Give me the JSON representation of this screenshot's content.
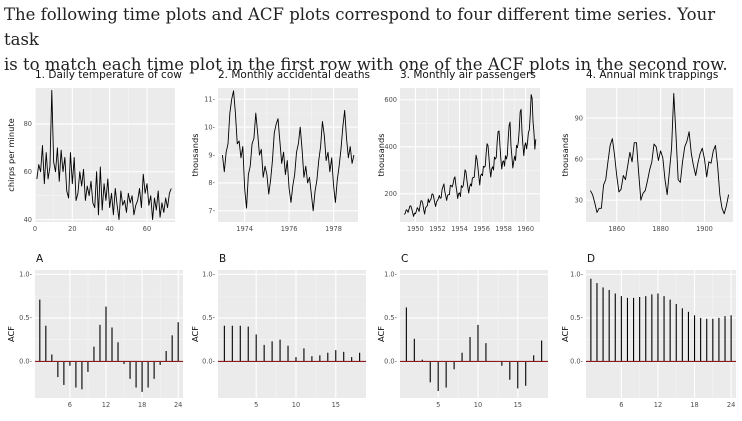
{
  "intro": {
    "line1": "The following time plots and ACF plots correspond to four different time series. Your task",
    "line2": "is to match each time plot in the first row with one of the ACF plots in the second row."
  },
  "colors": {
    "panel_bg": "#ebebeb",
    "grid_major": "#ffffff",
    "grid_minor": "#f5f5f5",
    "series": "#000000",
    "acf_bar": "#000000",
    "zero_line": "#8b1a1a"
  },
  "chart_data": [
    {
      "type": "line",
      "title": "1. Daily temperature of cow",
      "xlabel": "",
      "ylabel": "chirps per minute",
      "xlim": [
        0,
        75
      ],
      "ylim": [
        39,
        95
      ],
      "xticks": [
        0,
        20,
        40,
        60
      ],
      "xtick_labels": [
        "0",
        "20",
        "40",
        "60"
      ],
      "yticks": [
        40,
        60,
        80
      ],
      "ytick_labels": [
        "40",
        "60",
        "80"
      ],
      "x_start": 1,
      "values": [
        57,
        63,
        60,
        71,
        55,
        68,
        57,
        62,
        94,
        64,
        60,
        70,
        56,
        69,
        60,
        66,
        52,
        49,
        68,
        55,
        66,
        48,
        51,
        60,
        54,
        61,
        48,
        54,
        50,
        56,
        47,
        45,
        60,
        42,
        62,
        44,
        55,
        48,
        57,
        45,
        51,
        42,
        53,
        46,
        40,
        52,
        46,
        48,
        43,
        51,
        47,
        50,
        42,
        46,
        48,
        53,
        45,
        59,
        51,
        55,
        46,
        50,
        40,
        49,
        44,
        52,
        41,
        47,
        43,
        49,
        45,
        51,
        53
      ]
    },
    {
      "type": "line",
      "title": "2. Monthly accidental deaths",
      "xlabel": "",
      "ylabel": "thousands",
      "xlim": [
        1972.8,
        1979.1
      ],
      "ylim": [
        6.6,
        11.4
      ],
      "xticks": [
        1974,
        1976,
        1978
      ],
      "xtick_labels": [
        "1974",
        "1976",
        "1978"
      ],
      "yticks": [
        7,
        8,
        9,
        10,
        11
      ],
      "ytick_labels": [
        "7-",
        "8-",
        "9-",
        "10-",
        "11-"
      ],
      "x_start": 1973.0,
      "x_step": 0.0833333,
      "values": [
        9.0,
        8.4,
        9.1,
        9.4,
        10.5,
        11.0,
        11.3,
        10.5,
        9.4,
        9.5,
        8.9,
        9.3,
        7.8,
        7.1,
        8.3,
        8.6,
        9.4,
        9.6,
        10.5,
        9.8,
        9.0,
        9.2,
        8.2,
        8.6,
        8.3,
        7.6,
        8.1,
        8.8,
        9.8,
        10.1,
        10.3,
        9.5,
        8.7,
        9.1,
        8.3,
        8.8,
        7.8,
        7.3,
        7.9,
        8.3,
        9.1,
        9.4,
        10.0,
        9.2,
        8.2,
        8.6,
        8.0,
        8.2,
        7.6,
        7.0,
        7.7,
        8.1,
        8.8,
        9.3,
        10.2,
        9.7,
        8.8,
        9.1,
        8.4,
        8.9,
        7.9,
        7.3,
        8.1,
        8.6,
        9.2,
        10.0,
        10.6,
        9.6,
        8.9,
        9.3,
        8.7,
        9.0
      ]
    },
    {
      "type": "line",
      "title": "3. Monthly air passengers",
      "xlabel": "",
      "ylabel": "thousands",
      "xlim": [
        1948.6,
        1961.3
      ],
      "ylim": [
        80,
        650
      ],
      "xticks": [
        1950,
        1952,
        1954,
        1956,
        1958,
        1960
      ],
      "xtick_labels": [
        "1950",
        "1952",
        "1954",
        "1956",
        "1958",
        "1960"
      ],
      "yticks": [
        200,
        400,
        600
      ],
      "ytick_labels": [
        "200",
        "400",
        "600"
      ],
      "x_start": 1949.0,
      "x_step": 0.0833333,
      "values": [
        112,
        118,
        132,
        129,
        121,
        135,
        148,
        148,
        136,
        119,
        104,
        118,
        115,
        126,
        141,
        135,
        125,
        149,
        170,
        170,
        158,
        133,
        114,
        140,
        145,
        150,
        178,
        163,
        172,
        178,
        199,
        199,
        184,
        162,
        146,
        166,
        171,
        180,
        193,
        181,
        183,
        218,
        230,
        242,
        209,
        191,
        172,
        194,
        196,
        196,
        236,
        235,
        229,
        243,
        264,
        272,
        237,
        211,
        180,
        201,
        204,
        188,
        235,
        227,
        234,
        264,
        302,
        293,
        259,
        229,
        203,
        229,
        242,
        233,
        267,
        269,
        270,
        315,
        364,
        347,
        312,
        274,
        237,
        278,
        284,
        277,
        317,
        313,
        318,
        374,
        413,
        405,
        355,
        306,
        271,
        306,
        315,
        301,
        356,
        348,
        355,
        422,
        465,
        467,
        404,
        347,
        305,
        336,
        340,
        318,
        362,
        348,
        363,
        435,
        491,
        505,
        404,
        359,
        310,
        337,
        360,
        342,
        406,
        396,
        420,
        472,
        548,
        559,
        463,
        407,
        362,
        405,
        417,
        391,
        419,
        461,
        472,
        535,
        622,
        606,
        508,
        461,
        390,
        432
      ]
    },
    {
      "type": "line",
      "title": "4. Annual mink trappings",
      "xlabel": "",
      "ylabel": "thousands",
      "xlim": [
        1846,
        1913
      ],
      "ylim": [
        14,
        112
      ],
      "xticks": [
        1860,
        1880,
        1900
      ],
      "xtick_labels": [
        "1860",
        "1880",
        "1900"
      ],
      "yticks": [
        30,
        60,
        90
      ],
      "ytick_labels": [
        "30",
        "60",
        "90"
      ],
      "x_start": 1848,
      "x_step": 1,
      "values": [
        37,
        34,
        28,
        21,
        24,
        24,
        41,
        45,
        58,
        70,
        75,
        63,
        48,
        36,
        38,
        48,
        45,
        55,
        65,
        58,
        72,
        72,
        50,
        30,
        35,
        37,
        44,
        52,
        58,
        71,
        69,
        59,
        66,
        61,
        45,
        34,
        51,
        68,
        108,
        78,
        45,
        43,
        58,
        69,
        73,
        80,
        64,
        55,
        48,
        57,
        64,
        68,
        60,
        47,
        58,
        57,
        66,
        70,
        55,
        34,
        24,
        20,
        26,
        34
      ]
    },
    {
      "type": "bar",
      "subtype": "acf",
      "label": "A",
      "xlabel": "",
      "ylabel": "ACF",
      "xlim": [
        0.2,
        24.8
      ],
      "ylim": [
        -0.42,
        1.05
      ],
      "xticks": [
        6,
        12,
        18,
        24
      ],
      "xtick_labels": [
        "6",
        "12",
        "18",
        "24"
      ],
      "yticks": [
        0.0,
        0.5,
        1.0
      ],
      "ytick_labels": [
        "0.0-",
        "0.5-",
        "1.0-"
      ],
      "lags": [
        1,
        2,
        3,
        4,
        5,
        6,
        7,
        8,
        9,
        10,
        11,
        12,
        13,
        14,
        15,
        16,
        17,
        18,
        19,
        20,
        21,
        22,
        23,
        24
      ],
      "values": [
        0.71,
        0.41,
        0.08,
        -0.18,
        -0.27,
        -0.05,
        -0.3,
        -0.32,
        -0.12,
        0.17,
        0.42,
        0.63,
        0.39,
        0.22,
        -0.03,
        -0.2,
        -0.3,
        -0.35,
        -0.3,
        -0.2,
        -0.04,
        0.12,
        0.3,
        0.45
      ]
    },
    {
      "type": "bar",
      "subtype": "acf",
      "label": "B",
      "xlabel": "",
      "ylabel": "ACF",
      "xlim": [
        0.2,
        18.8
      ],
      "ylim": [
        -0.42,
        1.05
      ],
      "xticks": [
        5,
        10,
        15
      ],
      "xtick_labels": [
        "5",
        "10",
        "15"
      ],
      "yticks": [
        0.0,
        0.5,
        1.0
      ],
      "ytick_labels": [
        "0.0-",
        "0.5-",
        "1.0-"
      ],
      "lags": [
        1,
        2,
        3,
        4,
        5,
        6,
        7,
        8,
        9,
        10,
        11,
        12,
        13,
        14,
        15,
        16,
        17,
        18
      ],
      "values": [
        0.41,
        0.41,
        0.41,
        0.4,
        0.31,
        0.19,
        0.23,
        0.25,
        0.18,
        0.05,
        0.15,
        0.06,
        0.07,
        0.1,
        0.13,
        0.11,
        0.05,
        0.1
      ]
    },
    {
      "type": "bar",
      "subtype": "acf",
      "label": "C",
      "xlabel": "",
      "ylabel": "ACF",
      "xlim": [
        0.2,
        18.8
      ],
      "ylim": [
        -0.42,
        1.05
      ],
      "xticks": [
        5,
        10,
        15
      ],
      "xtick_labels": [
        "5",
        "10",
        "15"
      ],
      "yticks": [
        0.0,
        0.5,
        1.0
      ],
      "ytick_labels": [
        "0.0-",
        "0.5-",
        "1.0-"
      ],
      "lags": [
        1,
        2,
        3,
        4,
        5,
        6,
        7,
        8,
        9,
        10,
        11,
        12,
        13,
        14,
        15,
        16,
        17,
        18
      ],
      "values": [
        0.62,
        0.26,
        0.02,
        -0.24,
        -0.34,
        -0.3,
        -0.09,
        0.1,
        0.28,
        0.42,
        0.21,
        0.0,
        -0.05,
        -0.21,
        -0.31,
        -0.28,
        0.07,
        0.24
      ]
    },
    {
      "type": "bar",
      "subtype": "acf",
      "label": "D",
      "xlabel": "",
      "ylabel": "ACF",
      "xlim": [
        0.2,
        24.8
      ],
      "ylim": [
        -0.42,
        1.05
      ],
      "xticks": [
        6,
        12,
        18,
        24
      ],
      "xtick_labels": [
        "6",
        "12",
        "18",
        "24"
      ],
      "yticks": [
        0.0,
        0.5,
        1.0
      ],
      "ytick_labels": [
        "0.0-",
        "0.5-",
        "1.0-"
      ],
      "lags": [
        1,
        2,
        3,
        4,
        5,
        6,
        7,
        8,
        9,
        10,
        11,
        12,
        13,
        14,
        15,
        16,
        17,
        18,
        19,
        20,
        21,
        22,
        23,
        24
      ],
      "values": [
        0.95,
        0.9,
        0.85,
        0.82,
        0.78,
        0.75,
        0.73,
        0.73,
        0.74,
        0.75,
        0.77,
        0.78,
        0.75,
        0.71,
        0.66,
        0.61,
        0.57,
        0.53,
        0.5,
        0.49,
        0.49,
        0.5,
        0.52,
        0.53
      ]
    }
  ]
}
